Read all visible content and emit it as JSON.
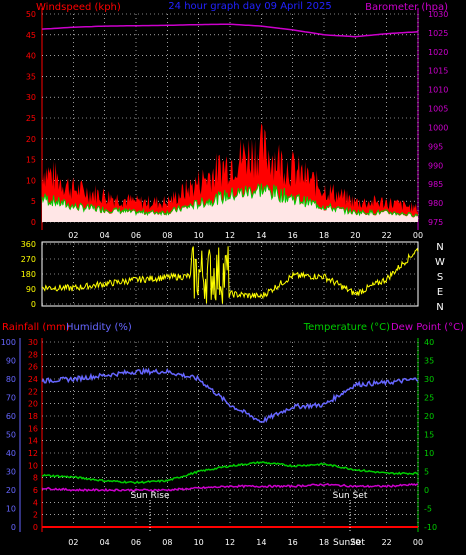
{
  "header": {
    "left_title": "Windspeed (kph)",
    "center_title": "24 hour graph day 09 April 2025",
    "right_title": "Barometer (hpa)"
  },
  "colors": {
    "bg": "#000000",
    "grid": "#ffffff",
    "wind": "#ff0000",
    "gust": "#ff0000",
    "wind_avg": "#00cc00",
    "wind_fill": "#ffffff",
    "barometer": "#cc00cc",
    "direction": "#ffff00",
    "humidity": "#6666ff",
    "temperature": "#00cc00",
    "dewpoint": "#cc00cc",
    "rain": "#ff0000",
    "center_title": "#0000ff"
  },
  "hours_axis": [
    "02",
    "04",
    "06",
    "08",
    "10",
    "12",
    "14",
    "16",
    "18",
    "20",
    "22",
    "00"
  ],
  "bottom_hours_axis": [
    "02",
    "04",
    "06",
    "08",
    "10",
    "12",
    "14",
    "16",
    "18",
    "20",
    "22",
    "00"
  ],
  "wind_panel": {
    "left_ticks": [
      "50",
      "45",
      "40",
      "35",
      "30",
      "25",
      "20",
      "15",
      "10",
      "5",
      "0"
    ],
    "right_ticks": [
      "1030",
      "1025",
      "1020",
      "1015",
      "1010",
      "1005",
      "1000",
      "995",
      "990",
      "985",
      "980",
      "975"
    ]
  },
  "direction_panel": {
    "left_ticks": [
      "360",
      "270",
      "180",
      "90",
      "0"
    ],
    "compass": [
      "N",
      "W",
      "S",
      "E",
      "N"
    ]
  },
  "bottom_panel": {
    "rain_label": "Rainfall (mm)",
    "humidity_label": "Humidity (%)",
    "temperature_label": "Temperature (°C)",
    "dewpoint_label": "Dew Point (°C)",
    "humidity_ticks": [
      "100",
      "90",
      "80",
      "70",
      "60",
      "50",
      "40",
      "30",
      "20",
      "10",
      "0"
    ],
    "rain_ticks": [
      "30",
      "28",
      "26",
      "24",
      "22",
      "20",
      "18",
      "16",
      "14",
      "12",
      "10",
      "8",
      "6",
      "4",
      "2",
      "0"
    ],
    "temp_ticks": [
      "40",
      "35",
      "30",
      "25",
      "20",
      "15",
      "10",
      "5",
      "0",
      "-5",
      "-10"
    ],
    "sunrise_label": "Sun Rise",
    "sunset_label": "Sun Set",
    "sunset_axis_label": "SunSet"
  },
  "chart_data": [
    {
      "type": "line",
      "title": "24 hour graph day 09 April 2025",
      "xlabel": "",
      "ylabel": "Windspeed (kph)",
      "ylabel_right": "Barometer (hpa)",
      "ylim": [
        0,
        50
      ],
      "ylim_right": [
        975,
        1030
      ],
      "x": [
        0,
        2,
        4,
        6,
        8,
        10,
        12,
        14,
        16,
        18,
        20,
        22,
        24
      ],
      "series": [
        {
          "name": "Windspeed (kph)",
          "values": [
            8,
            5,
            4,
            3,
            3,
            6,
            9,
            11,
            8,
            5,
            3,
            3,
            2
          ]
        },
        {
          "name": "Barometer (hpa)",
          "values": [
            1026,
            1026.5,
            1026.8,
            1026.9,
            1027,
            1027.2,
            1027.3,
            1026.8,
            1025.8,
            1024.5,
            1024,
            1024.8,
            1025.3
          ]
        }
      ]
    },
    {
      "type": "line",
      "title": "",
      "ylabel": "",
      "ylim": [
        0,
        360
      ],
      "x": [
        0,
        2,
        4,
        6,
        8,
        10,
        12,
        14,
        16,
        18,
        20,
        22,
        24
      ],
      "series": [
        {
          "name": "",
          "values": [
            100,
            95,
            120,
            145,
            160,
            170,
            60,
            45,
            170,
            165,
            60,
            150,
            330
          ]
        }
      ]
    },
    {
      "type": "line",
      "title": "",
      "ylabel": "Humidity (%)",
      "ylabel_right": "Temperature (°C)",
      "ylim": [
        0,
        100
      ],
      "ylim_right": [
        -10,
        40
      ],
      "x": [
        0,
        2,
        4,
        6,
        8,
        10,
        12,
        14,
        16,
        18,
        20,
        22,
        24
      ],
      "series": [
        {
          "name": "Humidity (%)",
          "values": [
            79,
            80,
            82,
            84,
            84,
            80,
            66,
            57,
            65,
            66,
            77,
            78,
            80
          ]
        },
        {
          "name": "Temperature (°C)",
          "values": [
            4,
            3.5,
            2.5,
            2,
            2.5,
            5,
            6.5,
            7.5,
            6.5,
            7,
            5.5,
            4.5,
            4.5
          ]
        },
        {
          "name": "Dew Point (°C)",
          "values": [
            0.5,
            0,
            0,
            0,
            0,
            0.5,
            1,
            1,
            1,
            1.5,
            1,
            1,
            1.5
          ]
        },
        {
          "name": "Rainfall (mm)",
          "values": [
            0,
            0,
            0,
            0,
            0,
            0,
            0,
            0,
            0,
            0,
            0,
            0,
            0
          ]
        }
      ]
    }
  ]
}
